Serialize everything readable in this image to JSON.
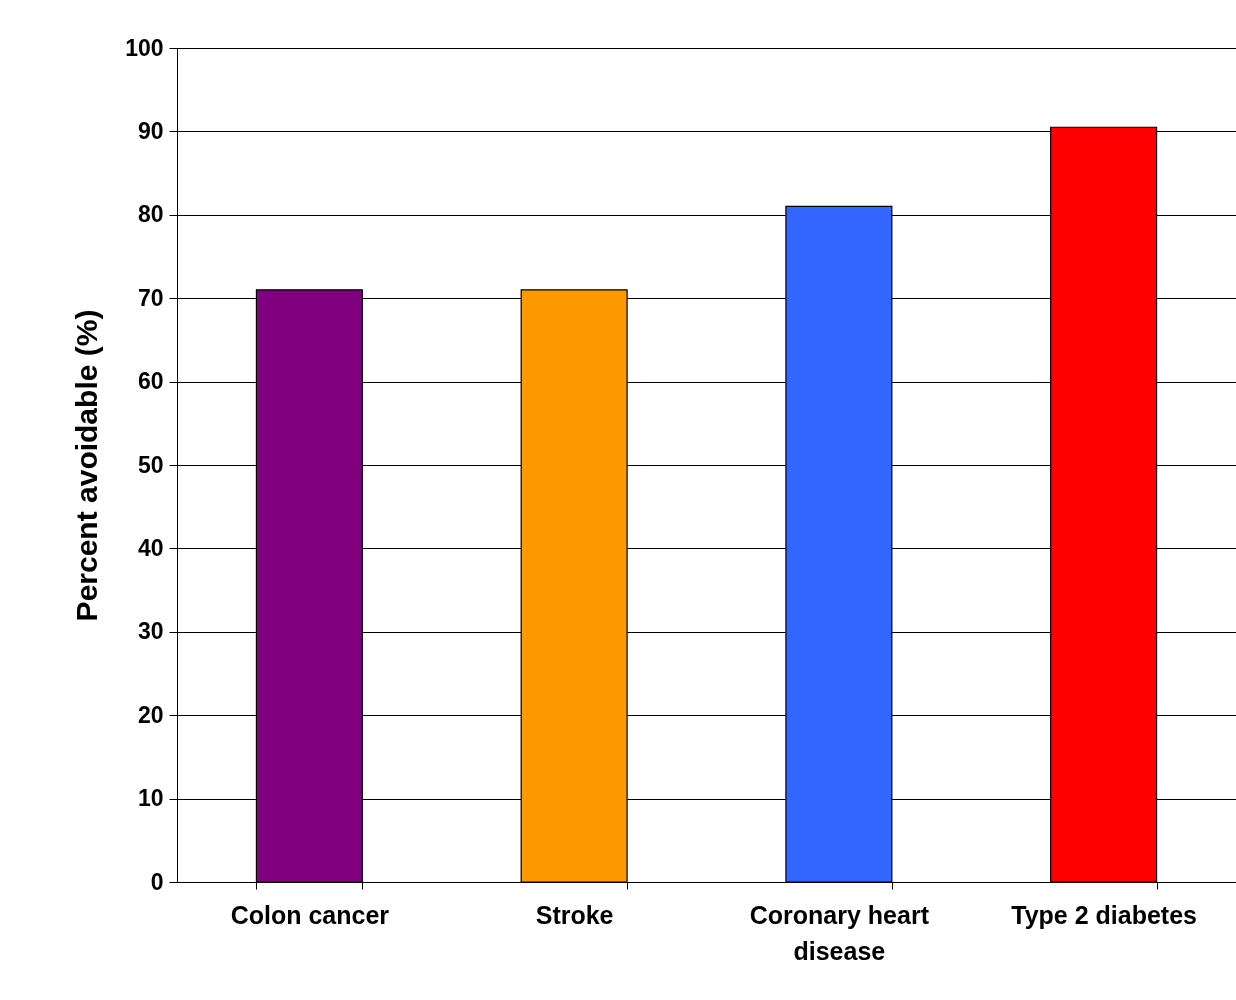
{
  "chart_data": {
    "type": "bar",
    "ylabel": "Percent avoidable (%)",
    "categories": [
      "Colon cancer",
      "Stroke",
      "Coronary heart disease",
      "Type 2 diabetes"
    ],
    "values": [
      71,
      71,
      81,
      90.5
    ],
    "colors": [
      "#800080",
      "#ff9900",
      "#3366ff",
      "#ff0000"
    ],
    "ylim": [
      0,
      100
    ],
    "yticks": [
      0,
      10,
      20,
      30,
      40,
      50,
      60,
      70,
      80,
      90,
      100
    ],
    "grid": "y"
  }
}
